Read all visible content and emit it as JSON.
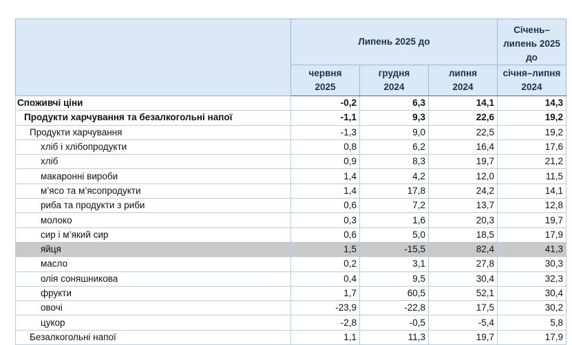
{
  "header": {
    "group_label": "Липень 2025 до",
    "cumulative_label": "Січень–липень 2025 до",
    "columns": [
      {
        "line1": "червня",
        "line2": "2025"
      },
      {
        "line1": "грудня",
        "line2": "2024"
      },
      {
        "line1": "липня",
        "line2": "2024"
      },
      {
        "line1": "січня–липня",
        "line2": "2024"
      }
    ]
  },
  "rows": [
    {
      "label": "Споживчі ціни",
      "values": [
        "-0,2",
        "6,3",
        "14,1",
        "14,3"
      ]
    },
    {
      "label": "Продукти харчування та безалкогольні напої",
      "values": [
        "-1,1",
        "9,3",
        "22,6",
        "19,2"
      ]
    },
    {
      "label": "Продукти харчування",
      "values": [
        "-1,3",
        "9,0",
        "22,5",
        "19,2"
      ]
    },
    {
      "label": "хліб і хлібопродукти",
      "values": [
        "0,8",
        "6,2",
        "16,4",
        "17,6"
      ]
    },
    {
      "label": "хліб",
      "values": [
        "0,9",
        "8,3",
        "19,7",
        "21,2"
      ]
    },
    {
      "label": "макаронні вироби",
      "values": [
        "1,4",
        "4,2",
        "12,0",
        "11,5"
      ]
    },
    {
      "label": "м’ясо та м’ясопродукти",
      "values": [
        "1,4",
        "17,8",
        "24,2",
        "14,1"
      ]
    },
    {
      "label": "риба та продукти з риби",
      "values": [
        "0,6",
        "7,2",
        "13,7",
        "12,8"
      ]
    },
    {
      "label": "молоко",
      "values": [
        "0,3",
        "1,6",
        "20,3",
        "19,7"
      ]
    },
    {
      "label": "сир і м’який сир",
      "values": [
        "0,6",
        "5,0",
        "18,5",
        "17,9"
      ]
    },
    {
      "label": "яйця",
      "values": [
        "1,5",
        "-15,5",
        "82,4",
        "41,3"
      ]
    },
    {
      "label": "масло",
      "values": [
        "0,2",
        "3,1",
        "27,8",
        "30,3"
      ]
    },
    {
      "label": "олія соняшникова",
      "values": [
        "0,4",
        "9,5",
        "30,4",
        "32,3"
      ]
    },
    {
      "label": "фрукти",
      "values": [
        "1,7",
        "60,5",
        "52,1",
        "30,4"
      ]
    },
    {
      "label": "овочі",
      "values": [
        "-23,9",
        "-22,8",
        "17,5",
        "30,2"
      ]
    },
    {
      "label": "цукор",
      "values": [
        "-2,8",
        "-0,5",
        "-5,4",
        "5,8"
      ]
    },
    {
      "label": "Безалкогольні напої",
      "values": [
        "1,1",
        "11,3",
        "19,7",
        "17,9"
      ]
    }
  ],
  "colors": {
    "header_bg": "#dbe8f5",
    "highlight_row_bg": "#c9c9c9",
    "border": "#b9cbe0"
  }
}
